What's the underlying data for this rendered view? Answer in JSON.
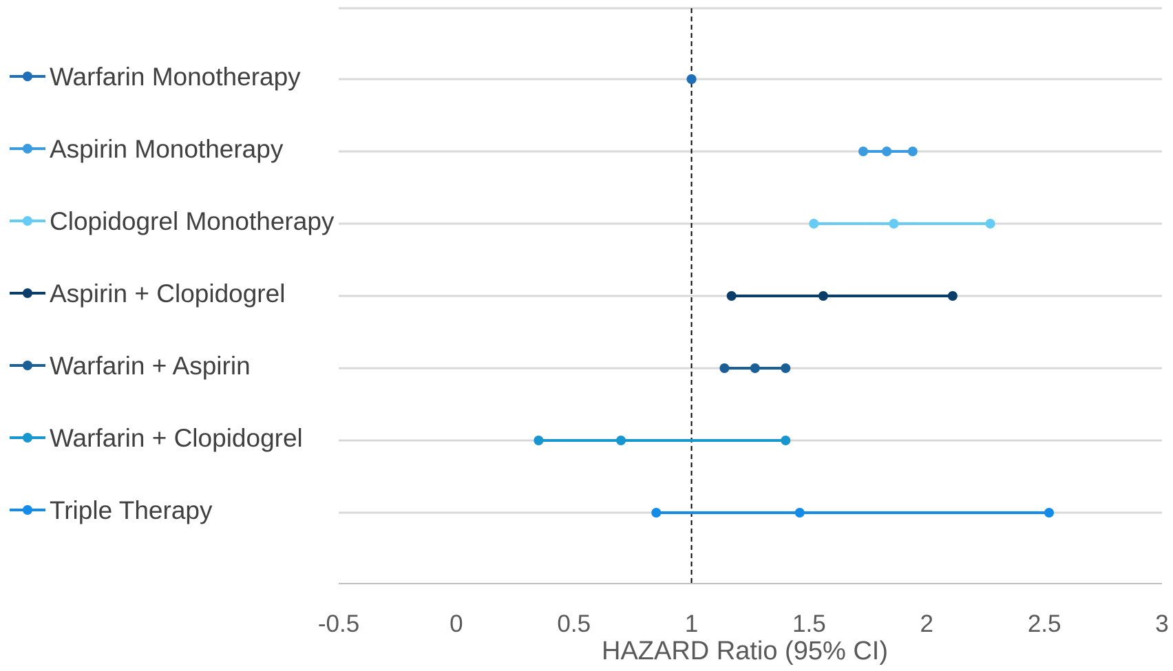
{
  "chart_data": {
    "type": "scatter",
    "title": "",
    "xlabel": "HAZARD Ratio (95% CI)",
    "ylabel": "",
    "xlim": [
      -0.5,
      3
    ],
    "xticks": [
      -0.5,
      0,
      0.5,
      1,
      1.5,
      2,
      2.5,
      3
    ],
    "xtick_labels": [
      "-0.5",
      "0",
      "0.5",
      "1",
      "1.5",
      "2",
      "2.5",
      "3"
    ],
    "reference_line": {
      "x": 1,
      "style": "dashed",
      "color": "#000000"
    },
    "grid": true,
    "legend_position": "left",
    "series": [
      {
        "name": "Warfarin Monotherapy",
        "color": "#1F6FB8",
        "lower": 1.0,
        "estimate": 1.0,
        "upper": 1.0
      },
      {
        "name": "Aspirin Monotherapy",
        "color": "#3A9BE0",
        "lower": 1.73,
        "estimate": 1.83,
        "upper": 1.94
      },
      {
        "name": "Clopidogrel Monotherapy",
        "color": "#66CCF5",
        "lower": 1.52,
        "estimate": 1.86,
        "upper": 2.27
      },
      {
        "name": "Aspirin + Clopidogrel",
        "color": "#0B3D6B",
        "lower": 1.17,
        "estimate": 1.56,
        "upper": 2.11
      },
      {
        "name": "Warfarin + Aspirin",
        "color": "#1A5F96",
        "lower": 1.14,
        "estimate": 1.27,
        "upper": 1.4
      },
      {
        "name": "Warfarin + Clopidogrel",
        "color": "#1796CF",
        "lower": 0.35,
        "estimate": 0.7,
        "upper": 1.4
      },
      {
        "name": "Triple Therapy",
        "color": "#148CE8",
        "lower": 0.85,
        "estimate": 1.46,
        "upper": 2.52
      }
    ]
  }
}
